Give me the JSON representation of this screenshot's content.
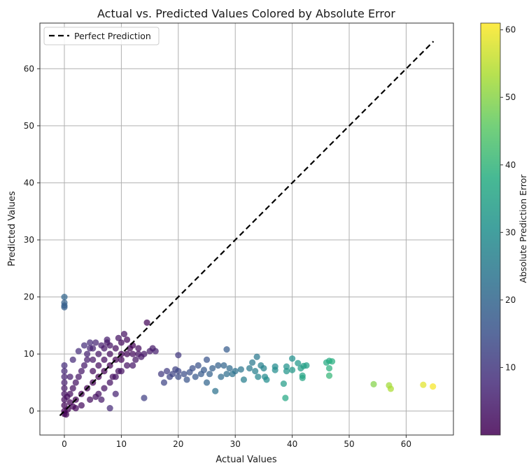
{
  "chart_data": {
    "type": "scatter",
    "title": "Actual vs. Predicted Values Colored by Absolute Error",
    "xlabel": "Actual Values",
    "ylabel": "Predicted Values",
    "xlim": [
      -4.3,
      68.3
    ],
    "ylim": [
      -4.2,
      68.0
    ],
    "xticks": [
      0,
      10,
      20,
      30,
      40,
      50,
      60
    ],
    "yticks": [
      0,
      10,
      20,
      30,
      40,
      50,
      60
    ],
    "grid": true,
    "legend": {
      "position": "top-left",
      "entries": [
        "Perfect Prediction"
      ]
    },
    "reference_line": {
      "name": "Perfect Prediction",
      "style": "dashed",
      "color": "#000000",
      "from": [
        -0.8,
        -0.8
      ],
      "to": [
        64.8,
        64.8
      ]
    },
    "colorbar": {
      "label": "Absolute Prediction Error",
      "colormap": "viridis",
      "range": [
        0,
        61
      ],
      "ticks": [
        10,
        20,
        30,
        40,
        50,
        60
      ]
    },
    "marker_alpha": 0.72,
    "points": [
      [
        0,
        20,
        20
      ],
      [
        0,
        19,
        19
      ],
      [
        0,
        18.5,
        18.5
      ],
      [
        0,
        18.2,
        18.2
      ],
      [
        0,
        8,
        8
      ],
      [
        0,
        7,
        7
      ],
      [
        0,
        6,
        6
      ],
      [
        0,
        5,
        5
      ],
      [
        0,
        4,
        4
      ],
      [
        0,
        3,
        3
      ],
      [
        0,
        2,
        2
      ],
      [
        0,
        1,
        1
      ],
      [
        0,
        0,
        0
      ],
      [
        0,
        -0.5,
        0.5
      ],
      [
        0.3,
        -0.6,
        0.9
      ],
      [
        0.6,
        0.3,
        0.3
      ],
      [
        0.5,
        2.5,
        2
      ],
      [
        1,
        1.5,
        0.5
      ],
      [
        1,
        3,
        2
      ],
      [
        1.5,
        4,
        2.5
      ],
      [
        2,
        2,
        0
      ],
      [
        2,
        5,
        3
      ],
      [
        2.5,
        6,
        3.5
      ],
      [
        3,
        3,
        0
      ],
      [
        3,
        7,
        4
      ],
      [
        3.5,
        8,
        4.5
      ],
      [
        4,
        4,
        0
      ],
      [
        4,
        9,
        5
      ],
      [
        4,
        10,
        6
      ],
      [
        4.5,
        11,
        6.5
      ],
      [
        5,
        5,
        0
      ],
      [
        5,
        7,
        2
      ],
      [
        5,
        9,
        4
      ],
      [
        5,
        11,
        6
      ],
      [
        5.5,
        12,
        6.5
      ],
      [
        6,
        3,
        3
      ],
      [
        6,
        6,
        0
      ],
      [
        6,
        8,
        2
      ],
      [
        6,
        10,
        4
      ],
      [
        6.5,
        11.5,
        5
      ],
      [
        7,
        4,
        3
      ],
      [
        7,
        7,
        0
      ],
      [
        7,
        9,
        2
      ],
      [
        7,
        11,
        4
      ],
      [
        7.5,
        12,
        4.5
      ],
      [
        8,
        5,
        3
      ],
      [
        8,
        8,
        0
      ],
      [
        8,
        10,
        2
      ],
      [
        8,
        11.5,
        3.5
      ],
      [
        8.5,
        6,
        2.5
      ],
      [
        9,
        6,
        3
      ],
      [
        9,
        9,
        0
      ],
      [
        9,
        11,
        2
      ],
      [
        9.5,
        7,
        2.5
      ],
      [
        10,
        7,
        3
      ],
      [
        10,
        9,
        1
      ],
      [
        10,
        10,
        0
      ],
      [
        10,
        12,
        2
      ],
      [
        10.5,
        13.5,
        3
      ],
      [
        11,
        8,
        3
      ],
      [
        11,
        10,
        1
      ],
      [
        11.5,
        11,
        0.5
      ],
      [
        12,
        8,
        4
      ],
      [
        12,
        10,
        2
      ],
      [
        12.5,
        9,
        3.5
      ],
      [
        13,
        10,
        3
      ],
      [
        13,
        11,
        2
      ],
      [
        13.5,
        9.5,
        4
      ],
      [
        14,
        10,
        4
      ],
      [
        14,
        2.3,
        11.7
      ],
      [
        14.5,
        15.5,
        1
      ],
      [
        15,
        10.5,
        4.5
      ],
      [
        15.5,
        11,
        4.5
      ],
      [
        16,
        10.5,
        5.5
      ],
      [
        8,
        0.5,
        7.5
      ],
      [
        3,
        1,
        2
      ],
      [
        2,
        0.5,
        1.5
      ],
      [
        1.5,
        0.8,
        0.7
      ],
      [
        4.5,
        2,
        2.5
      ],
      [
        5.5,
        2.5,
        3
      ],
      [
        6.5,
        2,
        4.5
      ],
      [
        9,
        3,
        6
      ],
      [
        2.5,
        10.5,
        8
      ],
      [
        3.5,
        11.5,
        8
      ],
      [
        4.5,
        12,
        7.5
      ],
      [
        1.5,
        9,
        7.5
      ],
      [
        1,
        6,
        5
      ],
      [
        12,
        11.5,
        0.5
      ],
      [
        11,
        12.5,
        1.5
      ],
      [
        9.5,
        12.8,
        3.3
      ],
      [
        7.5,
        12.5,
        5
      ],
      [
        17,
        6.5,
        10.5
      ],
      [
        17.5,
        5,
        12.5
      ],
      [
        18,
        7,
        11
      ],
      [
        18.5,
        6,
        12.5
      ],
      [
        19,
        6.5,
        12.5
      ],
      [
        19.5,
        7.3,
        12.2
      ],
      [
        20,
        6,
        14
      ],
      [
        20,
        7,
        13
      ],
      [
        20,
        9.8,
        10.2
      ],
      [
        21,
        6.5,
        14.5
      ],
      [
        21.5,
        5.5,
        16
      ],
      [
        22,
        6.8,
        15.2
      ],
      [
        22.5,
        7.5,
        15
      ],
      [
        23,
        6,
        17
      ],
      [
        23.5,
        8,
        15.5
      ],
      [
        24,
        6.5,
        17.5
      ],
      [
        24.5,
        7.2,
        17.3
      ],
      [
        25,
        9,
        16
      ],
      [
        25,
        5,
        20
      ],
      [
        25.5,
        6.5,
        19
      ],
      [
        26,
        7.5,
        18.5
      ],
      [
        26.5,
        3.5,
        23
      ],
      [
        27,
        8,
        19
      ],
      [
        27.5,
        6,
        21.5
      ],
      [
        28,
        8,
        20
      ],
      [
        28.5,
        10.8,
        17.7
      ],
      [
        28.5,
        6.5,
        22
      ],
      [
        29,
        7.5,
        21.5
      ],
      [
        29.5,
        6.5,
        23
      ],
      [
        30,
        7,
        23
      ],
      [
        31,
        7.3,
        23.7
      ],
      [
        31.5,
        5.5,
        26
      ],
      [
        32.5,
        7.5,
        25
      ],
      [
        33,
        8.5,
        24.5
      ],
      [
        33.5,
        7,
        26.5
      ],
      [
        33.8,
        9.5,
        24.3
      ],
      [
        34,
        6,
        28
      ],
      [
        34.5,
        8,
        26.5
      ],
      [
        35,
        7.5,
        27.5
      ],
      [
        35.2,
        6,
        29.2
      ],
      [
        35.5,
        5.5,
        30
      ],
      [
        37,
        7.8,
        29.2
      ],
      [
        37,
        7.2,
        29.8
      ],
      [
        38.5,
        4.8,
        33.7
      ],
      [
        38.8,
        2.3,
        36.5
      ],
      [
        39,
        7.8,
        31.2
      ],
      [
        39,
        7,
        32
      ],
      [
        40,
        9.2,
        30.8
      ],
      [
        40,
        7.2,
        32.8
      ],
      [
        41,
        8.4,
        32.6
      ],
      [
        41.5,
        7.5,
        34
      ],
      [
        41.8,
        6.2,
        35.6
      ],
      [
        41.8,
        5.8,
        36
      ],
      [
        42,
        7.9,
        34.1
      ],
      [
        42.5,
        8,
        34.5
      ],
      [
        46,
        8.5,
        37.5
      ],
      [
        46.5,
        8.8,
        37.7
      ],
      [
        46.5,
        7.5,
        39
      ],
      [
        46.5,
        6.2,
        40.3
      ],
      [
        47,
        8.7,
        38.3
      ],
      [
        54.3,
        4.7,
        49.6
      ],
      [
        57,
        4.5,
        52.5
      ],
      [
        57.3,
        3.9,
        53.4
      ],
      [
        63,
        4.6,
        58.4
      ],
      [
        64.7,
        4.3,
        60.4
      ]
    ]
  }
}
